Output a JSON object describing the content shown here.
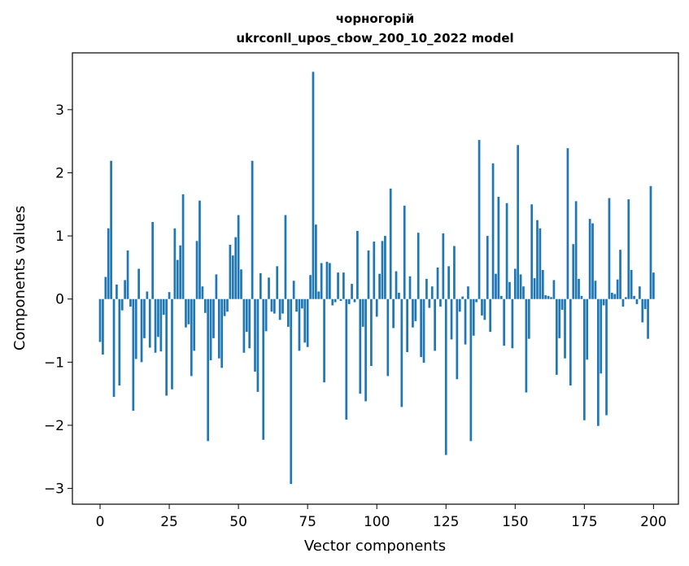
{
  "chart_data": {
    "type": "bar",
    "title": "чорногорій",
    "subtitle": "ukrconll_upos_cbow_200_10_2022 model",
    "xlabel": "Vector components",
    "ylabel": "Components values",
    "xlim": [
      -10,
      209
    ],
    "ylim": [
      -3.25,
      3.9
    ],
    "xticks": [
      0,
      25,
      50,
      75,
      100,
      125,
      150,
      175,
      200
    ],
    "yticks": [
      -3,
      -2,
      -1,
      0,
      1,
      2,
      3
    ],
    "xtick_labels": [
      "0",
      "25",
      "50",
      "75",
      "100",
      "125",
      "150",
      "175",
      "200"
    ],
    "ytick_labels": [
      "−3",
      "−2",
      "−1",
      "0",
      "1",
      "2",
      "3"
    ],
    "grid": false,
    "bar_color": "#1f77b4",
    "values": [
      -0.68,
      -0.88,
      0.35,
      1.12,
      2.19,
      -1.55,
      0.23,
      -1.37,
      -0.18,
      0.3,
      0.77,
      -0.12,
      -1.77,
      -0.95,
      0.48,
      -1.0,
      -0.62,
      0.12,
      -0.77,
      1.22,
      -0.85,
      -0.6,
      -0.83,
      -0.25,
      -1.53,
      0.11,
      -1.43,
      1.12,
      0.62,
      0.85,
      1.66,
      -0.45,
      -0.4,
      -1.22,
      -0.82,
      0.92,
      1.56,
      0.2,
      -0.22,
      -2.25,
      -0.97,
      -0.62,
      0.39,
      -0.94,
      -1.09,
      -0.27,
      -0.2,
      0.86,
      0.69,
      0.98,
      1.33,
      0.47,
      -0.85,
      -0.52,
      -0.78,
      2.19,
      -1.15,
      -1.47,
      0.41,
      -2.23,
      -0.51,
      0.34,
      -0.2,
      -0.23,
      0.52,
      -0.33,
      -0.23,
      1.33,
      -0.44,
      -2.93,
      0.29,
      -0.2,
      -0.82,
      -0.15,
      -0.69,
      -0.76,
      0.38,
      3.6,
      1.18,
      0.12,
      0.57,
      -1.32,
      0.59,
      0.57,
      -0.1,
      -0.05,
      0.42,
      -0.03,
      0.42,
      -1.91,
      -0.08,
      0.24,
      -0.05,
      1.08,
      -1.5,
      -0.44,
      -1.62,
      0.77,
      -1.06,
      0.91,
      -0.28,
      0.4,
      0.92,
      1.0,
      -1.22,
      1.75,
      -0.46,
      0.44,
      0.1,
      -1.71,
      1.48,
      -0.84,
      0.36,
      -0.45,
      -0.35,
      1.05,
      -0.92,
      -1.01,
      0.32,
      -0.14,
      0.2,
      -0.82,
      0.5,
      -0.12,
      1.04,
      -2.47,
      0.52,
      -0.64,
      0.84,
      -1.27,
      -0.2,
      0.04,
      -0.72,
      0.2,
      -2.25,
      -0.58,
      -0.05,
      2.52,
      -0.26,
      -0.33,
      1.0,
      -0.52,
      2.15,
      0.4,
      1.62,
      0.05,
      -0.74,
      1.52,
      0.27,
      -0.78,
      0.48,
      2.44,
      0.39,
      0.2,
      -1.48,
      -0.63,
      1.5,
      0.33,
      1.25,
      1.12,
      0.46,
      0.06,
      0.05,
      0.03,
      0.3,
      -1.2,
      -0.62,
      -0.17,
      -0.94,
      2.39,
      -1.37,
      0.87,
      1.55,
      0.32,
      0.05,
      -1.92,
      -0.96,
      1.27,
      1.2,
      0.29,
      -2.01,
      -1.18,
      -0.1,
      -1.84,
      1.6,
      0.1,
      0.08,
      0.31,
      0.78,
      -0.12,
      0.03,
      1.58,
      0.46,
      0.05,
      -0.08,
      0.2,
      -0.37,
      -0.16,
      -0.63,
      1.79,
      0.42
    ]
  }
}
